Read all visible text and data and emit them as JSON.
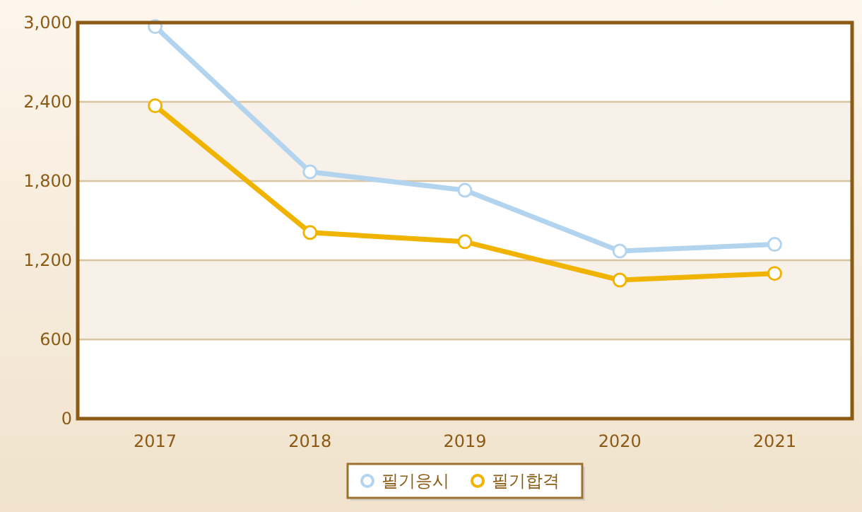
{
  "chart_data": {
    "type": "line",
    "categories": [
      "2017",
      "2018",
      "2019",
      "2020",
      "2021"
    ],
    "series": [
      {
        "name": "필기응시",
        "color": "#b3d4ee",
        "values": [
          2970,
          1870,
          1730,
          1270,
          1320
        ]
      },
      {
        "name": "필기합격",
        "color": "#f0b400",
        "values": [
          2370,
          1410,
          1340,
          1050,
          1100
        ]
      }
    ],
    "ylim": [
      0,
      3000
    ],
    "yticks": [
      {
        "value": 0,
        "label": "0"
      },
      {
        "value": 600,
        "label": "600"
      },
      {
        "value": 1200,
        "label": "1,200"
      },
      {
        "value": 1800,
        "label": "1,800"
      },
      {
        "value": 2400,
        "label": "2,400"
      },
      {
        "value": 3000,
        "label": "3,000"
      }
    ],
    "grid": "y",
    "legend": "bottom",
    "marker": "circle",
    "line_style": "solid"
  }
}
